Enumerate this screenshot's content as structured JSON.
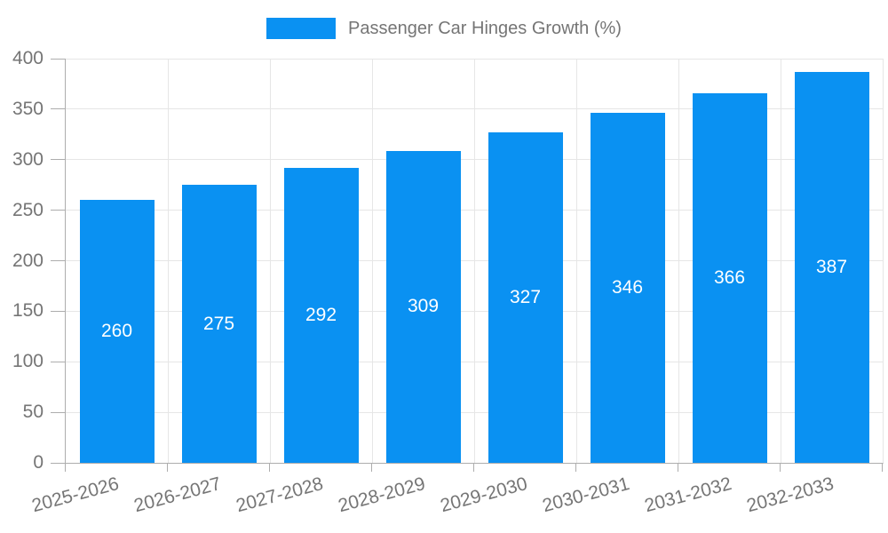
{
  "legend": {
    "label": "Passenger Car Hinges Growth (%)"
  },
  "colors": {
    "bar": "#0a91f2",
    "axis_text": "#757575",
    "grid_line": "#e6e6e6",
    "axis_line": "#adadad",
    "value_label": "#ffffff",
    "background": "#ffffff"
  },
  "chart_data": {
    "type": "bar",
    "title": "Passenger Car Hinges Growth (%)",
    "categories": [
      "2025-2026",
      "2026-2027",
      "2027-2028",
      "2028-2029",
      "2029-2030",
      "2030-2031",
      "2031-2032",
      "2032-2033"
    ],
    "values": [
      260,
      275,
      292,
      309,
      327,
      346,
      366,
      387
    ],
    "bar_labels": [
      "260",
      "275",
      "292",
      "309",
      "327",
      "346",
      "366",
      "387"
    ],
    "xlabel": "",
    "ylabel": "",
    "ylim": [
      0,
      400
    ],
    "yticks": [
      0,
      50,
      100,
      150,
      200,
      250,
      300,
      350,
      400
    ],
    "grid": true,
    "legend_position": "top-center",
    "x_label_rotation_deg": -15
  }
}
